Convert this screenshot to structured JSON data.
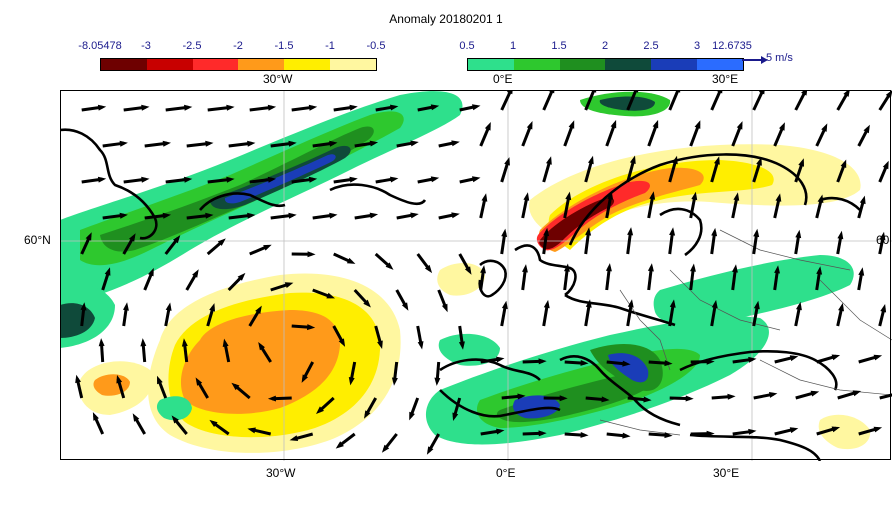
{
  "title": "Anomaly 20180201 1",
  "colorbar_negative": {
    "labels": [
      "-8.05478",
      "-3",
      "-2.5",
      "-2",
      "-1.5",
      "-1",
      "-0.5"
    ],
    "colors": [
      "#6e0000",
      "#c80000",
      "#ff2a2a",
      "#ff9a1a",
      "#ffee00",
      "#fff7a0"
    ]
  },
  "colorbar_positive": {
    "labels": [
      "0.5",
      "1",
      "1.5",
      "2",
      "2.5",
      "3",
      "12.6735"
    ],
    "colors": [
      "#2ee08c",
      "#2ec82e",
      "#1f8f1f",
      "#0f4a3a",
      "#1a3db8",
      "#2b6cff"
    ]
  },
  "reference_vector": {
    "label": "5 m/s"
  },
  "axes": {
    "top_longitudes": [
      "30°W",
      "0°E",
      "30°E"
    ],
    "bottom_longitudes": [
      "30°W",
      "0°E",
      "30°E"
    ],
    "left_latitude": "60°N",
    "right_latitude": "60"
  },
  "colors": {
    "coastline": "#000000",
    "graticule": "#bfbfbf",
    "land_fill": "#ffffff",
    "vector": "#000000"
  }
}
